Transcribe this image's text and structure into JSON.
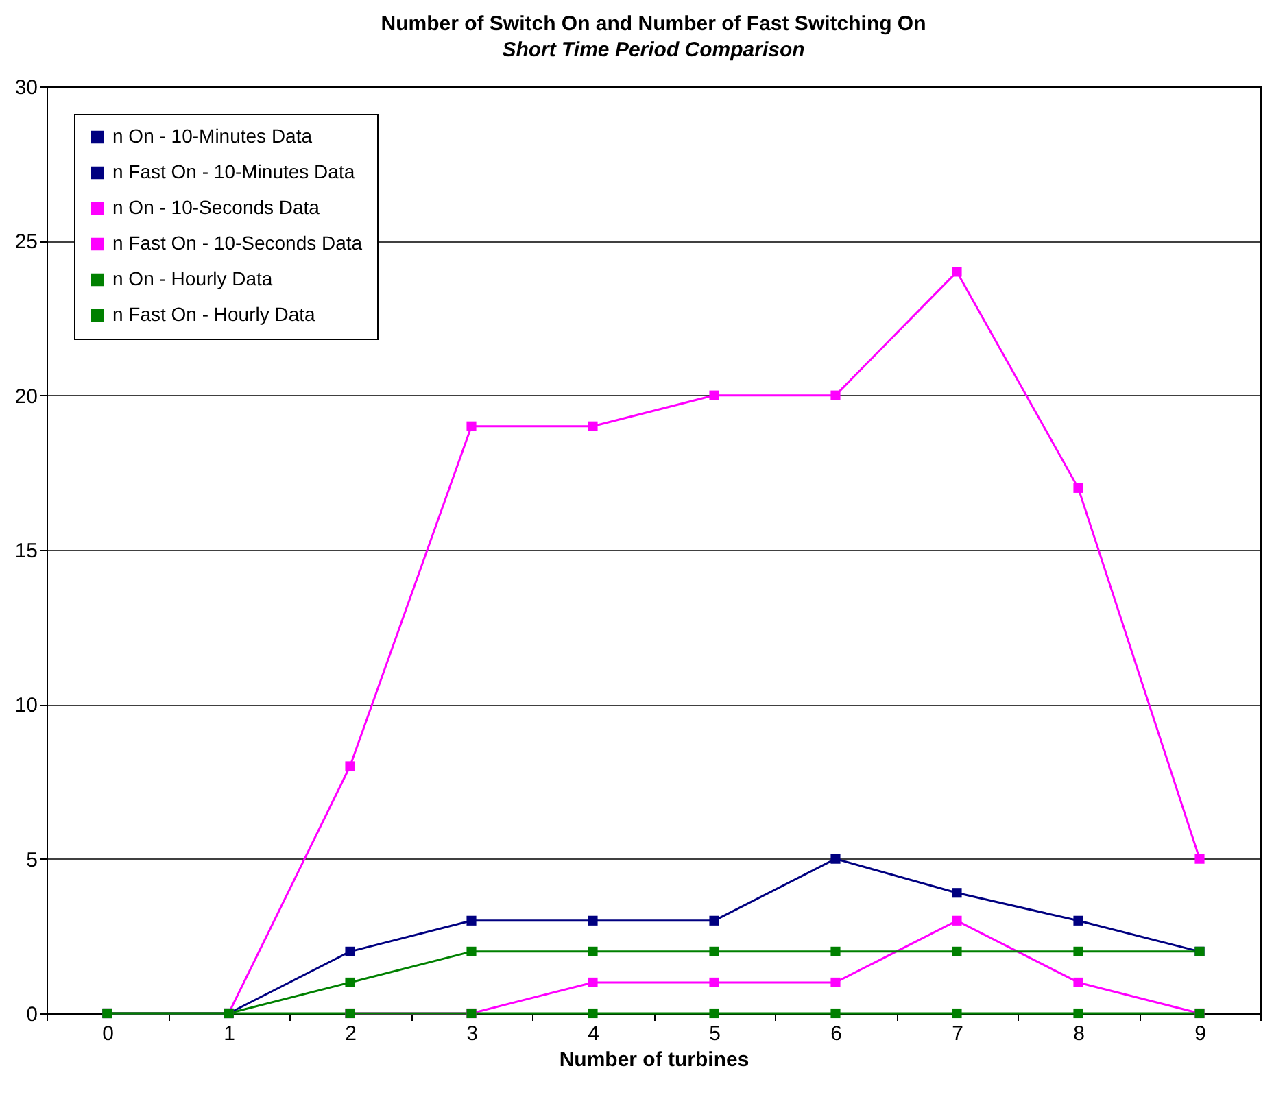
{
  "chart_data": {
    "type": "line",
    "title": "Number of Switch On and Number of Fast Switching On",
    "subtitle": "Short Time Period Comparison",
    "xlabel": "Number of turbines",
    "categories": [
      "0",
      "1",
      "2",
      "3",
      "4",
      "5",
      "6",
      "7",
      "8",
      "9"
    ],
    "series": [
      {
        "name": "n On - 10-Minutes Data",
        "color": "#000080",
        "values": [
          0,
          0,
          2,
          3,
          3,
          3,
          5,
          3.9,
          3,
          2
        ]
      },
      {
        "name": "n Fast On - 10-Minutes Data",
        "color": "#000080",
        "values": [
          null,
          null,
          null,
          null,
          null,
          null,
          null,
          null,
          null,
          null
        ]
      },
      {
        "name": "n On - 10-Seconds Data",
        "color": "#ff00ff",
        "values": [
          0,
          0,
          8,
          19,
          19,
          20,
          20,
          24,
          17,
          5
        ]
      },
      {
        "name": "n Fast On - 10-Seconds Data",
        "color": "#ff00ff",
        "values": [
          null,
          null,
          0,
          0,
          1,
          1,
          1,
          3,
          1,
          0
        ]
      },
      {
        "name": "n On - Hourly Data",
        "color": "#008000",
        "values": [
          0,
          0,
          1,
          2,
          2,
          2,
          2,
          2,
          2,
          2
        ]
      },
      {
        "name": "n Fast On - Hourly Data",
        "color": "#008000",
        "values": [
          0,
          0,
          0,
          0,
          0,
          0,
          0,
          0,
          0,
          0
        ]
      }
    ],
    "ylim": [
      0,
      30
    ],
    "yticks": [
      0,
      5,
      10,
      15,
      20,
      25,
      30
    ],
    "grid": "y",
    "legend": "top left",
    "marker": "square",
    "line_style": "solid"
  }
}
